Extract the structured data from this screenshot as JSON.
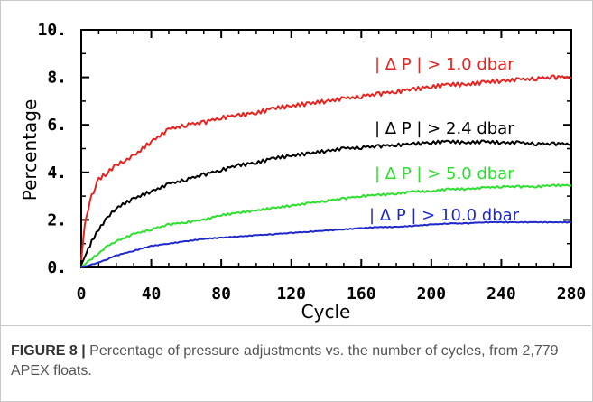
{
  "chart_data": {
    "type": "line",
    "title": "",
    "xlabel": "Cycle",
    "ylabel": "Percentage",
    "xlim": [
      0,
      280
    ],
    "ylim": [
      0,
      10
    ],
    "x_ticks": [
      0,
      40,
      80,
      120,
      160,
      200,
      240,
      280
    ],
    "x_tick_labels": [
      "0",
      "40",
      "80",
      "120",
      "160",
      "200",
      "240",
      "280"
    ],
    "y_ticks": [
      0,
      2,
      4,
      6,
      8,
      10
    ],
    "y_tick_labels": [
      "0.",
      "2.",
      "4.",
      "6.",
      "8.",
      "10."
    ],
    "grid": false,
    "series": [
      {
        "name": "| Δ P | > 1.0 dbar",
        "color": "#e8231f",
        "x": [
          0,
          2,
          4,
          6,
          8,
          10,
          15,
          20,
          25,
          30,
          40,
          50,
          60,
          70,
          80,
          90,
          100,
          110,
          120,
          130,
          140,
          150,
          160,
          170,
          180,
          190,
          200,
          210,
          220,
          230,
          240,
          250,
          260,
          270,
          280
        ],
        "y": [
          0.3,
          1.8,
          2.5,
          3.0,
          3.4,
          3.7,
          4.0,
          4.3,
          4.5,
          4.7,
          5.3,
          5.8,
          6.0,
          6.1,
          6.3,
          6.4,
          6.5,
          6.7,
          6.8,
          6.9,
          7.0,
          7.1,
          7.2,
          7.3,
          7.4,
          7.5,
          7.6,
          7.7,
          7.7,
          7.8,
          7.85,
          7.9,
          7.95,
          8.0,
          8.0
        ]
      },
      {
        "name": "| Δ P | > 2.4 dbar",
        "color": "#000000",
        "x": [
          0,
          3,
          6,
          10,
          15,
          20,
          30,
          40,
          50,
          60,
          70,
          80,
          90,
          100,
          110,
          120,
          130,
          140,
          150,
          160,
          170,
          180,
          190,
          200,
          210,
          220,
          230,
          240,
          250,
          260,
          270,
          280
        ],
        "y": [
          0.1,
          0.6,
          1.1,
          1.6,
          2.1,
          2.5,
          2.9,
          3.2,
          3.5,
          3.7,
          3.9,
          4.1,
          4.3,
          4.4,
          4.6,
          4.7,
          4.8,
          4.9,
          5.0,
          5.05,
          5.1,
          5.15,
          5.2,
          5.25,
          5.3,
          5.25,
          5.3,
          5.25,
          5.25,
          5.2,
          5.2,
          5.2
        ]
      },
      {
        "name": "| Δ P | > 5.0 dbar",
        "color": "#2de02d",
        "x": [
          0,
          5,
          10,
          15,
          20,
          30,
          40,
          50,
          60,
          70,
          80,
          90,
          100,
          110,
          120,
          130,
          140,
          150,
          160,
          170,
          180,
          190,
          200,
          210,
          220,
          230,
          240,
          250,
          260,
          270,
          280
        ],
        "y": [
          0.0,
          0.3,
          0.6,
          0.9,
          1.1,
          1.4,
          1.6,
          1.8,
          1.9,
          2.0,
          2.2,
          2.3,
          2.4,
          2.5,
          2.6,
          2.7,
          2.8,
          2.9,
          3.0,
          3.05,
          3.1,
          3.2,
          3.2,
          3.3,
          3.3,
          3.35,
          3.4,
          3.4,
          3.4,
          3.45,
          3.45
        ]
      },
      {
        "name": "| Δ P | > 10.0 dbar",
        "color": "#1f28c9",
        "x": [
          0,
          5,
          10,
          15,
          20,
          30,
          40,
          50,
          60,
          70,
          80,
          90,
          100,
          110,
          120,
          130,
          140,
          150,
          160,
          170,
          180,
          190,
          200,
          210,
          220,
          230,
          240,
          250,
          260,
          270,
          280
        ],
        "y": [
          0.0,
          0.1,
          0.2,
          0.35,
          0.5,
          0.7,
          0.9,
          1.0,
          1.1,
          1.2,
          1.25,
          1.3,
          1.35,
          1.4,
          1.45,
          1.5,
          1.55,
          1.6,
          1.65,
          1.7,
          1.7,
          1.75,
          1.8,
          1.85,
          1.85,
          1.9,
          1.9,
          1.9,
          1.9,
          1.9,
          1.9
        ]
      }
    ]
  },
  "caption": {
    "label": "FIGURE 8 |",
    "text": " Percentage of pressure adjustments vs. the number of cycles, from 2,779 APEX floats."
  }
}
